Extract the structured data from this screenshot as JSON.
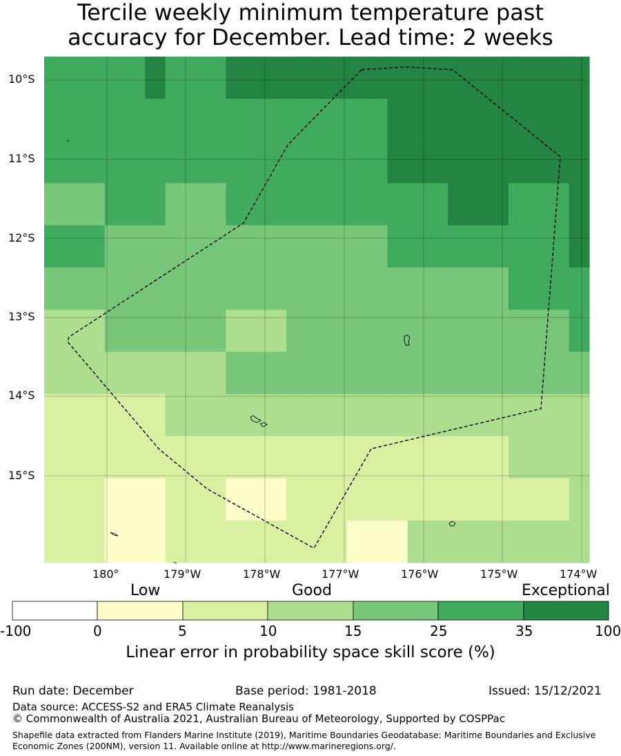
{
  "title": {
    "line1": "Tercile weekly minimum temperature past",
    "line2": "accuracy for December. Lead time: 2 weeks"
  },
  "map": {
    "lat_labels": [
      "10°S",
      "11°S",
      "12°S",
      "13°S",
      "14°S",
      "15°S"
    ],
    "lon_labels": [
      "180°",
      "179°W",
      "178°W",
      "177°W",
      "176°W",
      "175°W",
      "174°W"
    ],
    "legend_colors": [
      "#ffffff",
      "#ffffcc",
      "#d9f0a3",
      "#addd8e",
      "#78c679",
      "#41ab5d",
      "#238443"
    ],
    "grid_rows": [
      [
        5,
        5,
        5,
        5,
        5,
        6,
        5,
        5,
        5,
        6,
        6,
        6,
        6,
        6,
        6,
        6,
        6,
        6,
        6,
        6,
        6,
        6,
        6,
        6,
        6,
        6,
        6
      ],
      [
        5,
        5,
        5,
        5,
        5,
        5,
        5,
        5,
        5,
        5,
        5,
        5,
        5,
        5,
        5,
        5,
        5,
        6,
        6,
        6,
        6,
        6,
        6,
        6,
        6,
        6,
        6
      ],
      [
        5,
        5,
        5,
        5,
        5,
        5,
        5,
        5,
        5,
        5,
        5,
        5,
        5,
        5,
        5,
        5,
        5,
        6,
        6,
        6,
        6,
        6,
        6,
        6,
        6,
        6,
        6
      ],
      [
        4,
        4,
        4,
        5,
        5,
        5,
        4,
        4,
        4,
        5,
        5,
        5,
        5,
        5,
        5,
        5,
        5,
        5,
        5,
        5,
        6,
        6,
        6,
        5,
        5,
        5,
        6
      ],
      [
        5,
        5,
        5,
        4,
        4,
        4,
        4,
        4,
        4,
        4,
        4,
        4,
        4,
        4,
        4,
        4,
        4,
        5,
        5,
        5,
        5,
        5,
        5,
        5,
        5,
        5,
        6
      ],
      [
        4,
        4,
        4,
        4,
        4,
        4,
        4,
        4,
        4,
        4,
        4,
        4,
        4,
        4,
        4,
        4,
        4,
        4,
        4,
        4,
        4,
        4,
        4,
        5,
        5,
        5,
        5
      ],
      [
        3,
        3,
        3,
        4,
        4,
        4,
        4,
        4,
        4,
        3,
        3,
        3,
        4,
        4,
        4,
        4,
        4,
        4,
        4,
        4,
        4,
        4,
        4,
        4,
        4,
        4,
        5
      ],
      [
        3,
        3,
        3,
        3,
        3,
        3,
        3,
        3,
        3,
        4,
        4,
        4,
        4,
        4,
        4,
        4,
        4,
        4,
        4,
        4,
        4,
        4,
        4,
        4,
        4,
        4,
        4
      ],
      [
        2,
        2,
        2,
        2,
        2,
        2,
        3,
        3,
        3,
        3,
        3,
        3,
        3,
        3,
        3,
        3,
        3,
        3,
        3,
        3,
        3,
        3,
        3,
        3,
        3,
        3,
        3
      ],
      [
        2,
        2,
        2,
        2,
        2,
        2,
        2,
        2,
        2,
        2,
        2,
        2,
        2,
        2,
        2,
        2,
        2,
        2,
        2,
        2,
        2,
        2,
        2,
        3,
        3,
        3,
        3
      ],
      [
        2,
        2,
        2,
        1,
        1,
        1,
        2,
        2,
        2,
        1,
        1,
        1,
        2,
        2,
        2,
        2,
        2,
        2,
        2,
        2,
        2,
        2,
        2,
        2,
        2,
        2,
        3
      ],
      [
        2,
        2,
        2,
        1,
        1,
        1,
        2,
        2,
        2,
        2,
        2,
        2,
        2,
        2,
        2,
        1,
        1,
        1,
        3,
        3,
        3,
        3,
        3,
        3,
        3,
        3,
        3
      ]
    ]
  },
  "colorbar": {
    "words": {
      "low": "Low",
      "good": "Good",
      "exceptional": "Exceptional"
    },
    "ticks": [
      "-100",
      "0",
      "5",
      "10",
      "15",
      "25",
      "35",
      "100"
    ],
    "label": "Linear error in probability space skill score (%)"
  },
  "footer": {
    "run_date": "Run date: December",
    "base_period": "Base period: 1981-2018",
    "issued": "Issued: 15/12/2021",
    "data_source": "Data source: ACCESS-S2 and ERA5 Climate Reanalysis",
    "copyright": "© Commonwealth of Australia 2021, Australian Bureau of Meteorology, Supported by COSPPac",
    "shapefile": "Shapefile data extracted from Flanders Marine Institute (2019), Maritime Boundaries Geodatabase: Maritime Boundaries and Exclusive Economic Zones (200NM), version 11. Available online at http://www.marineregions.org/."
  }
}
